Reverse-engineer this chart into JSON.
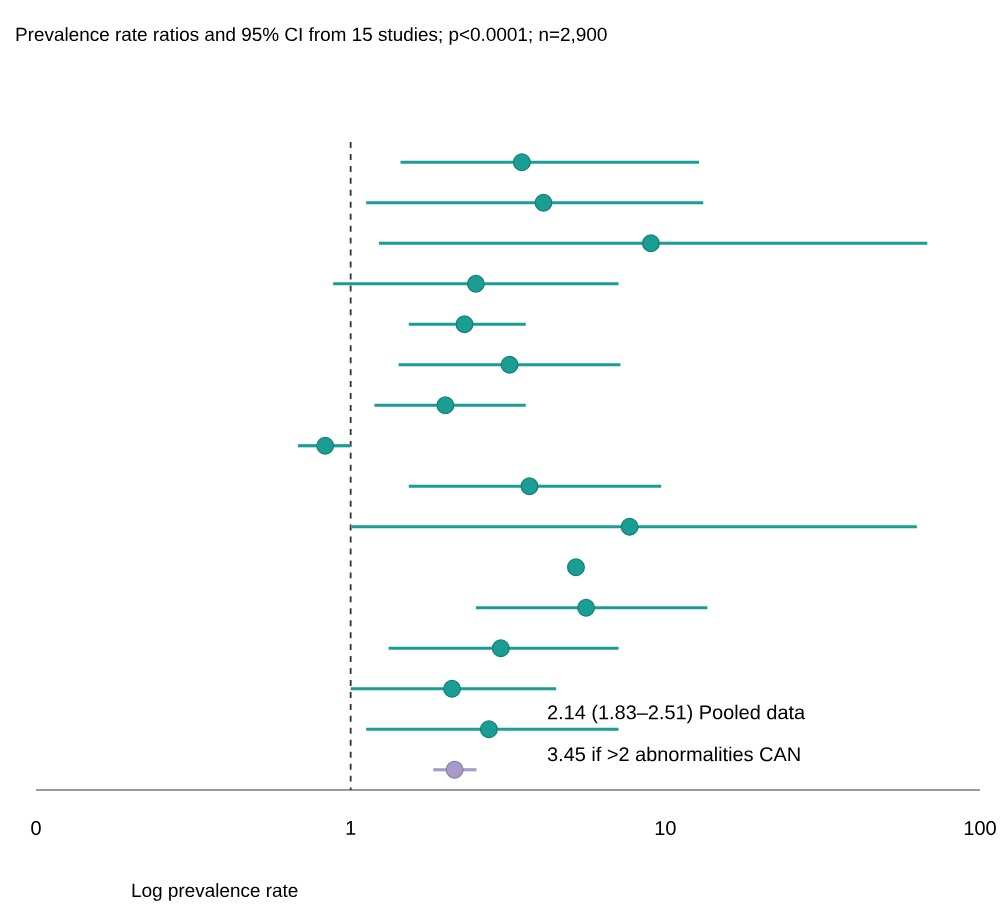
{
  "chart_data": {
    "type": "scatter",
    "orientation": "horizontal",
    "title": "Prevalence rate ratios and 95% CI from 15 studies; p<0.0001; n=2,900",
    "xlabel": "Log prevalence rate",
    "log": "x",
    "categories": [
      null,
      null,
      null,
      null,
      null,
      null,
      null,
      null,
      null,
      null,
      null,
      null,
      null,
      null,
      null,
      null
    ],
    "series": [
      {
        "color": "#1a9e94",
        "values": [
          3.5,
          4.1,
          9.0,
          2.5,
          2.3,
          3.2,
          2.0,
          0.83,
          3.7,
          7.7,
          5.2,
          5.6,
          3.0,
          2.1,
          2.75,
          null
        ],
        "errors": [
          [
            1.44,
            12.8
          ],
          [
            1.12,
            13.2
          ],
          [
            1.23,
            68
          ],
          [
            0.88,
            7.1
          ],
          [
            1.53,
            3.6
          ],
          [
            1.42,
            7.2
          ],
          [
            1.19,
            3.6
          ],
          [
            0.68,
            1.0
          ],
          [
            1.53,
            9.7
          ],
          [
            1.01,
            63
          ],
          null,
          [
            2.5,
            13.6
          ],
          [
            1.32,
            7.1
          ],
          [
            1.0,
            4.5
          ],
          [
            1.12,
            7.1
          ],
          null
        ]
      },
      {
        "color": "#a99bc9",
        "values": [
          null,
          null,
          null,
          null,
          null,
          null,
          null,
          null,
          null,
          null,
          null,
          null,
          null,
          null,
          null,
          2.14
        ],
        "errors": [
          null,
          null,
          null,
          null,
          null,
          null,
          null,
          null,
          null,
          null,
          null,
          null,
          null,
          null,
          null,
          [
            1.83,
            2.51
          ]
        ]
      }
    ],
    "xlim": [
      0.1,
      100
    ],
    "xticks": [
      {
        "value": 0.1,
        "label": "0"
      },
      1,
      10,
      100
    ],
    "ref_lines": [
      {
        "axis": "x",
        "value": 1,
        "line_style": "dashed",
        "color": "#333333"
      }
    ],
    "annotations": [
      "2.14 (1.83–2.51)  Pooled data",
      "3.45 if >2 abnormalities CAN"
    ]
  }
}
